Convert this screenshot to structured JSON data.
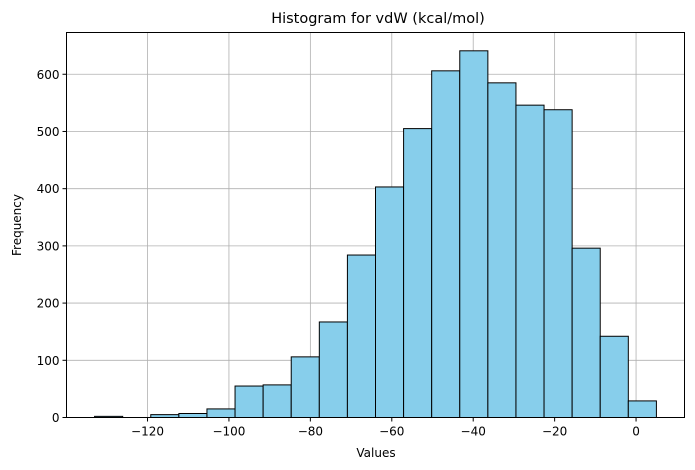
{
  "chart_data": {
    "type": "bar",
    "title": "Histogram for vdW (kcal/mol)",
    "xlabel": "Values",
    "ylabel": "Frequency",
    "bins": [
      {
        "start": -133.0,
        "end": -126.1,
        "count": 2
      },
      {
        "start": -126.1,
        "end": -119.2,
        "count": 0
      },
      {
        "start": -119.2,
        "end": -112.3,
        "count": 5
      },
      {
        "start": -112.3,
        "end": -105.4,
        "count": 7
      },
      {
        "start": -105.4,
        "end": -98.5,
        "count": 15
      },
      {
        "start": -98.5,
        "end": -91.6,
        "count": 55
      },
      {
        "start": -91.6,
        "end": -84.7,
        "count": 57
      },
      {
        "start": -84.7,
        "end": -77.8,
        "count": 106
      },
      {
        "start": -77.8,
        "end": -70.9,
        "count": 167
      },
      {
        "start": -70.9,
        "end": -64.0,
        "count": 284
      },
      {
        "start": -64.0,
        "end": -57.1,
        "count": 403
      },
      {
        "start": -57.1,
        "end": -50.2,
        "count": 505
      },
      {
        "start": -50.2,
        "end": -43.3,
        "count": 606
      },
      {
        "start": -43.3,
        "end": -36.4,
        "count": 641
      },
      {
        "start": -36.4,
        "end": -29.5,
        "count": 585
      },
      {
        "start": -29.5,
        "end": -22.6,
        "count": 546
      },
      {
        "start": -22.6,
        "end": -15.7,
        "count": 538
      },
      {
        "start": -15.7,
        "end": -8.8,
        "count": 296
      },
      {
        "start": -8.8,
        "end": -1.9,
        "count": 142
      },
      {
        "start": -1.9,
        "end": 5.0,
        "count": 29
      }
    ],
    "xlim": [
      -139.9,
      11.9
    ],
    "ylim": [
      0,
      673
    ],
    "xticks": [
      -120,
      -100,
      -80,
      -60,
      -40,
      -20,
      0
    ],
    "xtick_labels": [
      "−120",
      "−100",
      "−80",
      "−60",
      "−40",
      "−20",
      "0"
    ],
    "yticks": [
      0,
      100,
      200,
      300,
      400,
      500,
      600
    ],
    "ytick_labels": [
      "0",
      "100",
      "200",
      "300",
      "400",
      "500",
      "600"
    ],
    "grid": true,
    "bar_color": "#87ceeb",
    "edge_color": "#000000"
  }
}
